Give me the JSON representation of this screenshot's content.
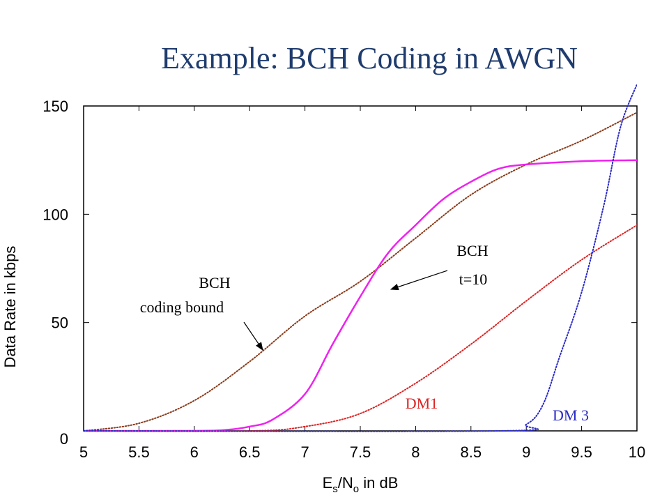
{
  "title": "Example: BCH Coding in AWGN",
  "chart_data": {
    "type": "line",
    "xlabel": "E_s/N_o in dB",
    "ylabel": "Data Rate in kbps",
    "xlim": [
      5,
      10
    ],
    "ylim": [
      0,
      150
    ],
    "x_ticks": [
      "5",
      "5.5",
      "6",
      "6.5",
      "7",
      "7.5",
      "8",
      "8.5",
      "9",
      "9.5",
      "10"
    ],
    "y_ticks": [
      "0",
      "50",
      "100",
      "150"
    ],
    "grid": false,
    "series": [
      {
        "name": "BCH coding bound",
        "color": "#8b3a1a",
        "style": "dotted",
        "x": [
          5,
          5.5,
          6,
          6.5,
          7,
          7.5,
          8,
          8.5,
          9,
          9.5,
          10
        ],
        "y": [
          0,
          3.5,
          14,
          32,
          53,
          69,
          89,
          109,
          123,
          134,
          147
        ]
      },
      {
        "name": "BCH t=10",
        "color": "#ee22ee",
        "style": "solid",
        "x": [
          5,
          6,
          6.3,
          6.5,
          6.7,
          7,
          7.25,
          7.5,
          7.75,
          8,
          8.25,
          8.5,
          8.75,
          9,
          9.5,
          10
        ],
        "y": [
          0,
          0,
          0.5,
          2,
          5,
          17,
          40,
          62,
          82,
          95,
          107,
          115,
          121,
          123,
          124.5,
          125
        ]
      },
      {
        "name": "DM1",
        "color": "#dd2222",
        "style": "dotted",
        "x": [
          5,
          6.5,
          7,
          7.5,
          8,
          8.5,
          9,
          9.5,
          10
        ],
        "y": [
          0,
          0,
          2,
          8,
          22,
          40,
          60,
          79,
          95
        ]
      },
      {
        "name": "DM 3",
        "color": "#2a2ac8",
        "style": "dotted",
        "x": [
          5,
          8.75,
          9,
          9.15,
          9.3,
          9.5,
          9.7,
          9.85,
          10
        ],
        "y": [
          0,
          0,
          3,
          12,
          34,
          64,
          104,
          140,
          160
        ]
      }
    ],
    "annotations": [
      {
        "lines": [
          "BCH",
          "coding bound"
        ],
        "color": "#000000"
      },
      {
        "lines": [
          "BCH",
          "t=10"
        ],
        "color": "#000000"
      },
      {
        "lines": [
          "DM1"
        ],
        "color": "#dd2222"
      },
      {
        "lines": [
          "DM 3"
        ],
        "color": "#2a2ac8"
      }
    ]
  }
}
